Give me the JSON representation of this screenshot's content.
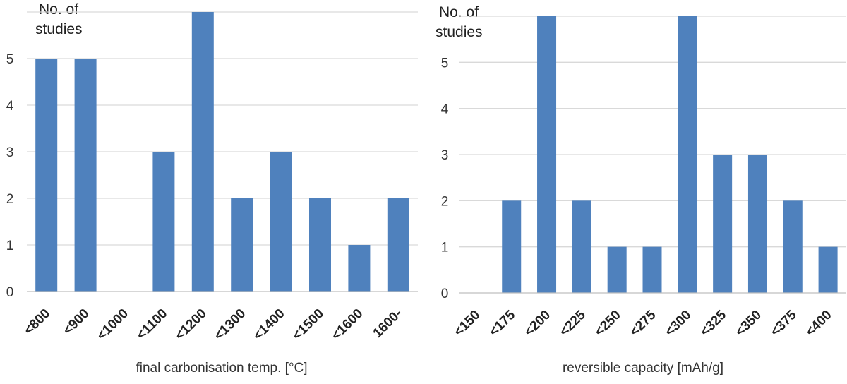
{
  "chart_data": [
    {
      "type": "bar",
      "ylabel": "No. of studies",
      "xlabel": "final carbonisation temp. [°C]",
      "categories": [
        "<800",
        "<900",
        "<1000",
        "<1100",
        "<1200",
        "<1300",
        "<1400",
        "<1500",
        "<1600",
        "1600-"
      ],
      "values": [
        5,
        5,
        0,
        3,
        6,
        2,
        3,
        2,
        1,
        2
      ],
      "yticks": [
        "0",
        "1",
        "2",
        "3",
        "4",
        "5"
      ],
      "ylim": [
        0,
        6
      ],
      "grid": true,
      "color": "#4f81bd"
    },
    {
      "type": "bar",
      "ylabel": "No. of studies",
      "xlabel": "reversible capacity [mAh/g]",
      "categories": [
        "<150",
        "<175",
        "<200",
        "<225",
        "<250",
        "<275",
        "<300",
        "<325",
        "<350",
        "<375",
        "<400"
      ],
      "values": [
        0,
        2,
        6,
        2,
        1,
        1,
        6,
        3,
        3,
        2,
        1
      ],
      "yticks": [
        "0",
        "1",
        "2",
        "3",
        "4",
        "5"
      ],
      "ylim": [
        0,
        6
      ],
      "grid": true,
      "color": "#4f81bd"
    }
  ]
}
